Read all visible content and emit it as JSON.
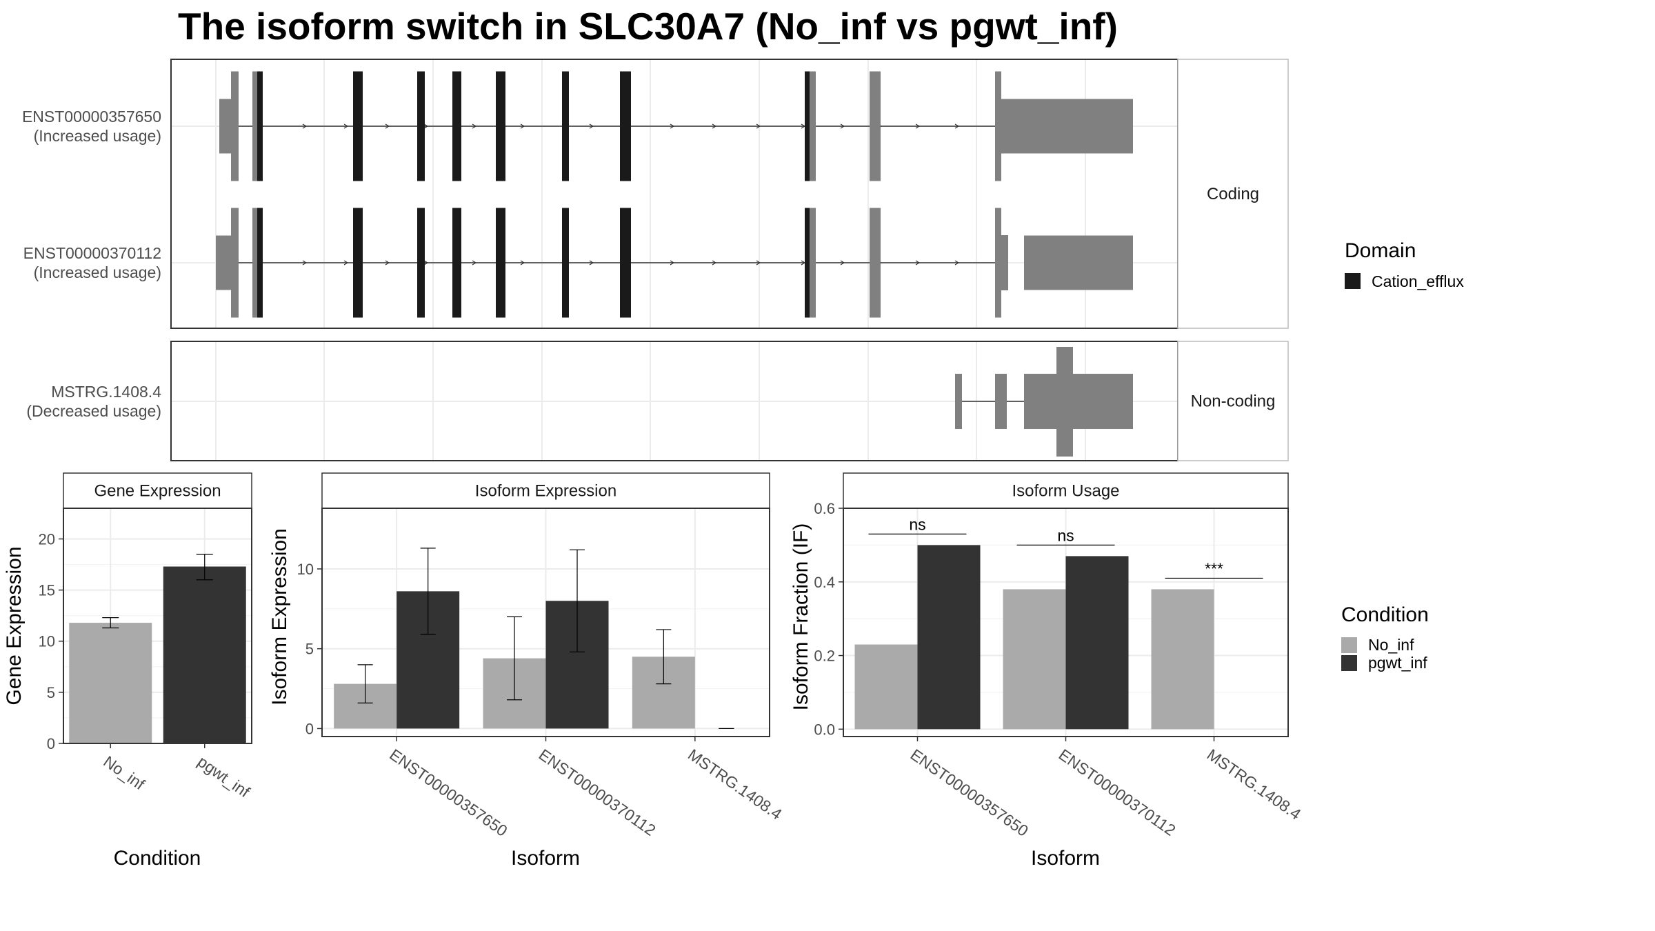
{
  "title": "The isoform switch in SLC30A7 (No_inf vs pgwt_inf)",
  "colors": {
    "no_inf": "#aaaaaa",
    "pgwt_inf": "#333333",
    "domain": "#1a1a1a",
    "exon": "#808080",
    "intron": "#333333",
    "strip_bg": "#ffffff",
    "grid": "#ebebeb",
    "panel_border": "#333333"
  },
  "transcripts": {
    "rows": [
      {
        "id": "ENST00000357650",
        "status": "(Increased usage)",
        "group": "Coding"
      },
      {
        "id": "ENST00000370112",
        "status": "(Increased usage)",
        "group": "Coding"
      },
      {
        "id": "MSTRG.1408.4",
        "status": "(Decreased usage)",
        "group": "Non-coding"
      }
    ],
    "groups": [
      "Coding",
      "Non-coding"
    ]
  },
  "legend_domain": {
    "title": "Domain",
    "items": [
      {
        "label": "Cation_efflux",
        "color": "#1a1a1a"
      }
    ]
  },
  "legend_condition": {
    "title": "Condition",
    "items": [
      {
        "label": "No_inf",
        "color": "#aaaaaa"
      },
      {
        "label": "pgwt_inf",
        "color": "#333333"
      }
    ]
  },
  "chart_data": [
    {
      "type": "bar",
      "strip": "Gene Expression",
      "xlabel": "Condition",
      "ylabel": "Gene Expression",
      "categories": [
        "No_inf",
        "pgwt_inf"
      ],
      "values": [
        11.8,
        17.3
      ],
      "errors": [
        [
          11.3,
          12.3
        ],
        [
          16.0,
          18.5
        ]
      ],
      "ylim": [
        0,
        23
      ],
      "yticks": [
        0,
        5,
        10,
        15,
        20
      ]
    },
    {
      "type": "bar",
      "strip": "Isoform Expression",
      "xlabel": "Isoform",
      "ylabel": "Isoform Expression",
      "categories": [
        "ENST00000357650",
        "ENST00000370112",
        "MSTRG.1408.4"
      ],
      "series": [
        {
          "name": "No_inf",
          "values": [
            2.8,
            4.4,
            4.5
          ],
          "errors": [
            [
              1.6,
              4.0
            ],
            [
              1.8,
              7.0
            ],
            [
              2.8,
              6.2
            ]
          ]
        },
        {
          "name": "pgwt_inf",
          "values": [
            8.6,
            8.0,
            0.0
          ],
          "errors": [
            [
              5.9,
              11.3
            ],
            [
              4.8,
              11.2
            ],
            [
              0.0,
              0.0
            ]
          ]
        }
      ],
      "ylim": [
        -0.5,
        13.8
      ],
      "yticks": [
        0,
        5,
        10
      ]
    },
    {
      "type": "bar",
      "strip": "Isoform Usage",
      "xlabel": "Isoform",
      "ylabel": "Isoform Fraction (IF)",
      "categories": [
        "ENST00000357650",
        "ENST00000370112",
        "MSTRG.1408.4"
      ],
      "series": [
        {
          "name": "No_inf",
          "values": [
            0.23,
            0.38,
            0.38
          ]
        },
        {
          "name": "pgwt_inf",
          "values": [
            0.5,
            0.47,
            0.0
          ]
        }
      ],
      "significance": [
        "ns",
        "ns",
        "***"
      ],
      "ylim": [
        -0.02,
        0.6
      ],
      "yticks": [
        "0.0",
        "0.2",
        "0.4",
        "0.6"
      ]
    }
  ]
}
